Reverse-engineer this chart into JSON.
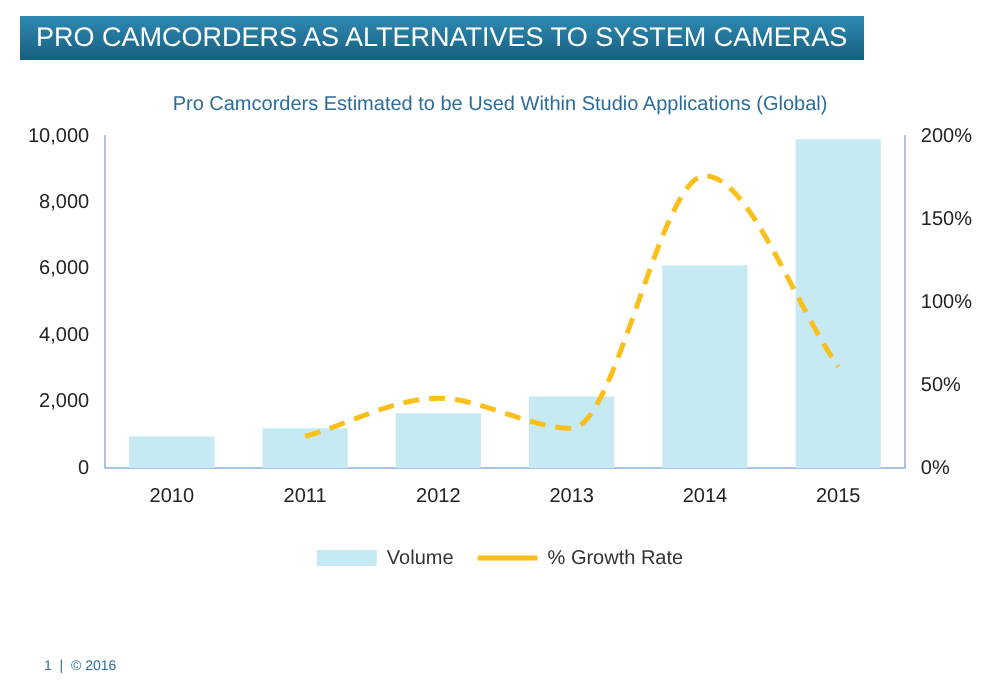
{
  "chart_data": {
    "type": "bar",
    "title": "PRO CAMCORDERS AS ALTERNATIVES TO SYSTEM CAMERAS",
    "subtitle": "Pro Camcorders Estimated to be Used Within Studio Applications (Global)",
    "categories": [
      "2010",
      "2011",
      "2012",
      "2013",
      "2014",
      "2015"
    ],
    "series": [
      {
        "name": "Volume",
        "color": "#c5eaf3",
        "values": [
          950,
          1200,
          1650,
          2150,
          6100,
          9900
        ]
      },
      {
        "name": "% Growth Rate",
        "type": "line",
        "axis": "y2",
        "color": "#fbbf1a",
        "values": [
          null,
          19,
          42,
          24,
          176,
          61
        ]
      }
    ],
    "ylim": [
      0,
      10000
    ],
    "yticks": [
      {
        "value": 0,
        "label": "0"
      },
      {
        "value": 2000,
        "label": "2,000"
      },
      {
        "value": 4000,
        "label": "4,000"
      },
      {
        "value": 6000,
        "label": "6,000"
      },
      {
        "value": 8000,
        "label": "8,000"
      },
      {
        "value": 10000,
        "label": "10,000"
      }
    ],
    "y2lim": [
      0,
      200
    ],
    "y2ticks": [
      {
        "value": 0,
        "label": "0%"
      },
      {
        "value": 50,
        "label": "50%"
      },
      {
        "value": 100,
        "label": "100%"
      },
      {
        "value": 150,
        "label": "150%"
      },
      {
        "value": 200,
        "label": "200%"
      }
    ],
    "grid": false,
    "legend": "bottom",
    "line_style": "dashed",
    "marker": "none",
    "annotations": [
      "1  |  © 2016"
    ]
  }
}
